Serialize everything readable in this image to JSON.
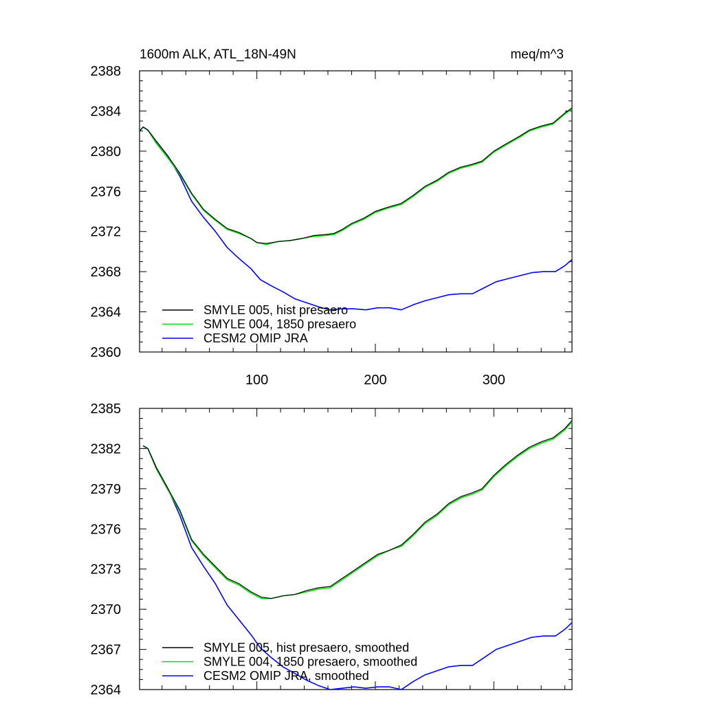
{
  "colors": {
    "smyle005": "#000000",
    "smyle004": "#00e000",
    "omip": "#0000ff"
  },
  "chart_data": [
    {
      "type": "line",
      "title": "1600m ALK, ATL_18N-49N",
      "units": "meq/m^3",
      "xlim": [
        1,
        366
      ],
      "ylim": [
        2360,
        2388
      ],
      "xticks": [
        100,
        200,
        300
      ],
      "xtick_labels": [
        "100",
        "200",
        "300"
      ],
      "yticks": [
        2360,
        2364,
        2368,
        2372,
        2376,
        2380,
        2384,
        2388
      ],
      "ytick_labels": [
        "2360",
        "2364",
        "2368",
        "2372",
        "2376",
        "2380",
        "2384",
        "2388"
      ],
      "legend": "bottom-left",
      "series": [
        {
          "name": "SMYLE 005, hist presaero",
          "color": "#000000",
          "points": [
            [
              1,
              2382.0
            ],
            [
              4,
              2382.4
            ],
            [
              8,
              2382.1
            ],
            [
              15,
              2381.0
            ],
            [
              25,
              2379.5
            ],
            [
              35,
              2377.8
            ],
            [
              45,
              2375.8
            ],
            [
              55,
              2374.2
            ],
            [
              65,
              2373.2
            ],
            [
              75,
              2372.3
            ],
            [
              85,
              2371.9
            ],
            [
              95,
              2371.3
            ],
            [
              100,
              2370.9
            ],
            [
              108,
              2370.8
            ],
            [
              118,
              2371.0
            ],
            [
              128,
              2371.1
            ],
            [
              138,
              2371.3
            ],
            [
              148,
              2371.6
            ],
            [
              158,
              2371.7
            ],
            [
              165,
              2371.8
            ],
            [
              172,
              2372.2
            ],
            [
              180,
              2372.8
            ],
            [
              190,
              2373.3
            ],
            [
              200,
              2374.0
            ],
            [
              210,
              2374.4
            ],
            [
              222,
              2374.8
            ],
            [
              232,
              2375.6
            ],
            [
              242,
              2376.5
            ],
            [
              252,
              2377.1
            ],
            [
              262,
              2377.9
            ],
            [
              272,
              2378.4
            ],
            [
              282,
              2378.7
            ],
            [
              290,
              2379.0
            ],
            [
              300,
              2380.0
            ],
            [
              310,
              2380.7
            ],
            [
              322,
              2381.5
            ],
            [
              330,
              2382.1
            ],
            [
              340,
              2382.5
            ],
            [
              350,
              2382.8
            ],
            [
              360,
              2383.8
            ],
            [
              366,
              2384.3
            ]
          ]
        },
        {
          "name": "SMYLE 004, 1850 presaero",
          "color": "#00e000",
          "points": [
            [
              1,
              2382.0
            ],
            [
              4,
              2382.4
            ],
            [
              8,
              2382.1
            ],
            [
              15,
              2380.8
            ],
            [
              25,
              2379.3
            ],
            [
              35,
              2377.7
            ],
            [
              45,
              2375.7
            ],
            [
              55,
              2374.1
            ],
            [
              65,
              2373.1
            ],
            [
              75,
              2372.2
            ],
            [
              85,
              2371.8
            ],
            [
              95,
              2371.3
            ],
            [
              100,
              2370.9
            ],
            [
              108,
              2370.7
            ],
            [
              118,
              2371.0
            ],
            [
              128,
              2371.1
            ],
            [
              138,
              2371.3
            ],
            [
              148,
              2371.5
            ],
            [
              158,
              2371.6
            ],
            [
              165,
              2371.7
            ],
            [
              172,
              2372.1
            ],
            [
              180,
              2372.7
            ],
            [
              190,
              2373.2
            ],
            [
              200,
              2373.9
            ],
            [
              210,
              2374.3
            ],
            [
              222,
              2374.7
            ],
            [
              232,
              2375.5
            ],
            [
              242,
              2376.4
            ],
            [
              252,
              2377.0
            ],
            [
              262,
              2377.8
            ],
            [
              272,
              2378.3
            ],
            [
              282,
              2378.6
            ],
            [
              290,
              2378.9
            ],
            [
              300,
              2379.9
            ],
            [
              310,
              2380.6
            ],
            [
              322,
              2381.4
            ],
            [
              330,
              2382.0
            ],
            [
              340,
              2382.4
            ],
            [
              350,
              2382.7
            ],
            [
              360,
              2383.7
            ],
            [
              366,
              2384.2
            ]
          ]
        },
        {
          "name": "CESM2 OMIP JRA",
          "color": "#0000ff",
          "points": [
            [
              1,
              2382.0
            ],
            [
              4,
              2382.4
            ],
            [
              8,
              2382.1
            ],
            [
              15,
              2381.0
            ],
            [
              25,
              2379.5
            ],
            [
              35,
              2377.5
            ],
            [
              45,
              2375.0
            ],
            [
              55,
              2373.4
            ],
            [
              65,
              2372.0
            ],
            [
              75,
              2370.4
            ],
            [
              85,
              2369.3
            ],
            [
              95,
              2368.3
            ],
            [
              103,
              2367.2
            ],
            [
              112,
              2366.6
            ],
            [
              122,
              2366.0
            ],
            [
              132,
              2365.3
            ],
            [
              142,
              2364.9
            ],
            [
              152,
              2364.5
            ],
            [
              162,
              2364.2
            ],
            [
              172,
              2364.3
            ],
            [
              182,
              2364.3
            ],
            [
              192,
              2364.2
            ],
            [
              202,
              2364.4
            ],
            [
              212,
              2364.4
            ],
            [
              222,
              2364.2
            ],
            [
              232,
              2364.7
            ],
            [
              242,
              2365.1
            ],
            [
              252,
              2365.4
            ],
            [
              262,
              2365.7
            ],
            [
              272,
              2365.8
            ],
            [
              282,
              2365.8
            ],
            [
              292,
              2366.4
            ],
            [
              302,
              2367.0
            ],
            [
              312,
              2367.3
            ],
            [
              322,
              2367.6
            ],
            [
              332,
              2367.9
            ],
            [
              342,
              2368.0
            ],
            [
              352,
              2368.0
            ],
            [
              360,
              2368.6
            ],
            [
              366,
              2369.2
            ]
          ]
        }
      ]
    },
    {
      "type": "line",
      "xlim": [
        1,
        366
      ],
      "ylim": [
        2364,
        2385
      ],
      "xticks": [
        100,
        200,
        300
      ],
      "yticks": [
        2364,
        2367,
        2370,
        2373,
        2376,
        2379,
        2382,
        2385
      ],
      "ytick_labels": [
        "2364",
        "2367",
        "2370",
        "2373",
        "2376",
        "2379",
        "2382",
        "2385"
      ],
      "legend": "bottom-left",
      "series": [
        {
          "name": "SMYLE 005, hist presaero, smoothed",
          "color": "#000000",
          "points": [
            [
              4,
              2382.2
            ],
            [
              8,
              2382.0
            ],
            [
              15,
              2380.6
            ],
            [
              25,
              2379.0
            ],
            [
              35,
              2377.4
            ],
            [
              45,
              2375.2
            ],
            [
              55,
              2374.1
            ],
            [
              65,
              2373.2
            ],
            [
              75,
              2372.3
            ],
            [
              85,
              2371.9
            ],
            [
              95,
              2371.3
            ],
            [
              104,
              2370.9
            ],
            [
              112,
              2370.8
            ],
            [
              122,
              2371.0
            ],
            [
              132,
              2371.1
            ],
            [
              142,
              2371.4
            ],
            [
              152,
              2371.6
            ],
            [
              162,
              2371.7
            ],
            [
              172,
              2372.3
            ],
            [
              182,
              2372.9
            ],
            [
              192,
              2373.5
            ],
            [
              202,
              2374.1
            ],
            [
              212,
              2374.4
            ],
            [
              222,
              2374.8
            ],
            [
              232,
              2375.6
            ],
            [
              242,
              2376.5
            ],
            [
              252,
              2377.1
            ],
            [
              262,
              2377.9
            ],
            [
              272,
              2378.4
            ],
            [
              282,
              2378.7
            ],
            [
              290,
              2379.0
            ],
            [
              300,
              2380.0
            ],
            [
              310,
              2380.8
            ],
            [
              320,
              2381.5
            ],
            [
              330,
              2382.1
            ],
            [
              340,
              2382.5
            ],
            [
              350,
              2382.8
            ],
            [
              360,
              2383.5
            ],
            [
              366,
              2384.1
            ]
          ]
        },
        {
          "name": "SMYLE 004, 1850 presaero, smoothed",
          "color": "#00e000",
          "points": [
            [
              4,
              2382.2
            ],
            [
              8,
              2382.0
            ],
            [
              15,
              2380.5
            ],
            [
              25,
              2378.9
            ],
            [
              35,
              2377.3
            ],
            [
              45,
              2375.1
            ],
            [
              55,
              2374.0
            ],
            [
              65,
              2373.1
            ],
            [
              75,
              2372.2
            ],
            [
              85,
              2371.8
            ],
            [
              95,
              2371.2
            ],
            [
              104,
              2370.8
            ],
            [
              112,
              2370.8
            ],
            [
              122,
              2371.0
            ],
            [
              132,
              2371.1
            ],
            [
              142,
              2371.3
            ],
            [
              152,
              2371.5
            ],
            [
              162,
              2371.6
            ],
            [
              172,
              2372.2
            ],
            [
              182,
              2372.8
            ],
            [
              192,
              2373.4
            ],
            [
              202,
              2374.0
            ],
            [
              212,
              2374.4
            ],
            [
              222,
              2374.7
            ],
            [
              232,
              2375.5
            ],
            [
              242,
              2376.4
            ],
            [
              252,
              2377.0
            ],
            [
              262,
              2377.8
            ],
            [
              272,
              2378.3
            ],
            [
              282,
              2378.6
            ],
            [
              290,
              2378.9
            ],
            [
              300,
              2379.9
            ],
            [
              310,
              2380.7
            ],
            [
              320,
              2381.4
            ],
            [
              330,
              2382.0
            ],
            [
              340,
              2382.4
            ],
            [
              350,
              2382.7
            ],
            [
              360,
              2383.4
            ],
            [
              366,
              2384.0
            ]
          ]
        },
        {
          "name": "CESM2 OMIP JRA, smoothed",
          "color": "#0000ff",
          "points": [
            [
              4,
              2382.2
            ],
            [
              8,
              2382.0
            ],
            [
              15,
              2380.6
            ],
            [
              25,
              2379.0
            ],
            [
              35,
              2377.0
            ],
            [
              45,
              2374.6
            ],
            [
              55,
              2373.2
            ],
            [
              65,
              2371.9
            ],
            [
              75,
              2370.3
            ],
            [
              85,
              2369.2
            ],
            [
              95,
              2368.1
            ],
            [
              103,
              2367.1
            ],
            [
              112,
              2366.4
            ],
            [
              122,
              2365.7
            ],
            [
              132,
              2365.2
            ],
            [
              142,
              2364.7
            ],
            [
              152,
              2364.3
            ],
            [
              162,
              2364.0
            ],
            [
              172,
              2364.1
            ],
            [
              182,
              2364.2
            ],
            [
              192,
              2364.1
            ],
            [
              202,
              2364.2
            ],
            [
              212,
              2364.2
            ],
            [
              222,
              2364.0
            ],
            [
              232,
              2364.6
            ],
            [
              242,
              2365.1
            ],
            [
              252,
              2365.4
            ],
            [
              262,
              2365.7
            ],
            [
              272,
              2365.8
            ],
            [
              282,
              2365.8
            ],
            [
              292,
              2366.4
            ],
            [
              302,
              2367.0
            ],
            [
              312,
              2367.3
            ],
            [
              322,
              2367.6
            ],
            [
              332,
              2367.9
            ],
            [
              342,
              2368.0
            ],
            [
              352,
              2368.0
            ],
            [
              360,
              2368.5
            ],
            [
              366,
              2369.0
            ]
          ]
        }
      ]
    }
  ]
}
